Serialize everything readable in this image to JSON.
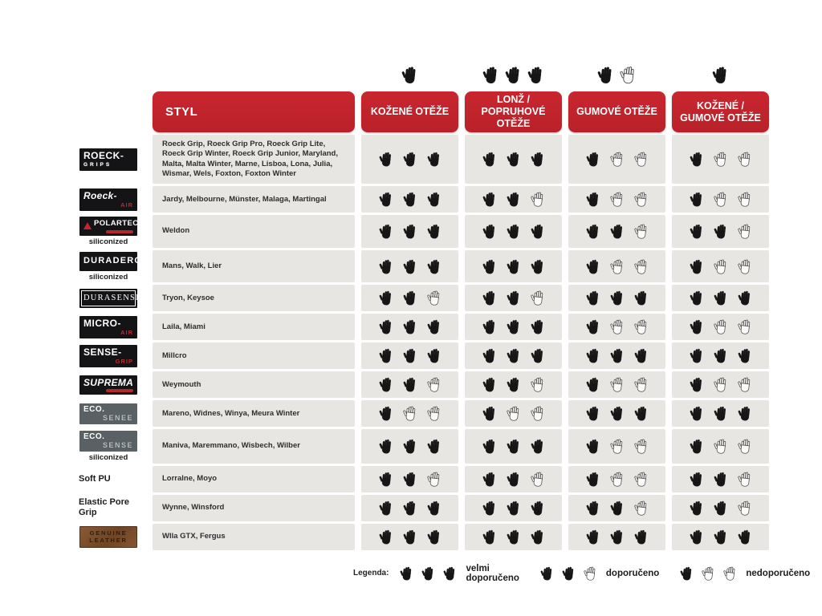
{
  "colors": {
    "accent_red": "#c4242e",
    "row_background": "#e8e6e3",
    "logo_black": "#141417",
    "logo_gray": "#596165",
    "leather_brown": "#7a4c28",
    "hand_fill": "#161616"
  },
  "table": {
    "style_header": "STYL",
    "rating_scale": {
      "max": 3
    },
    "columns": [
      {
        "label": "KOŽENÉ OTĚŽE",
        "header_hands": {
          "filled": 1,
          "total": 1
        }
      },
      {
        "label": "LONŽ / POPRUHOVÉ OTĚŽE",
        "header_hands": {
          "filled": 3,
          "total": 3
        }
      },
      {
        "label": "GUMOVÉ OTĚŽE",
        "header_hands": {
          "filled": 1,
          "total": 2
        }
      },
      {
        "label": "KOŽENÉ / GUMOVÉ OTĚŽE",
        "header_hands": {
          "filled": 1,
          "total": 1
        }
      }
    ],
    "rows": [
      {
        "brand": {
          "id": "roeck-grips",
          "box": "black",
          "lines": [
            {
              "t": "ROECK-",
              "c": "main"
            },
            {
              "t": "GRIPS",
              "c": "spaced"
            }
          ],
          "below": ""
        },
        "products": "Roeck Grip, Roeck Grip Pro, Roeck Grip Lite, Roeck Grip Winter, Roeck Grip Junior, Maryland, Malta, Malta Winter, Marne, Lisboa, Lona, Julia, Wismar, Wels, Foxton, Foxton Winter",
        "ratings": [
          3,
          3,
          1,
          1
        ]
      },
      {
        "brand": {
          "id": "roeck-air",
          "box": "black",
          "lines": [
            {
              "t": "Roeck-",
              "c": "main-it"
            },
            {
              "t": "AIR",
              "c": "red-right"
            }
          ],
          "below": ""
        },
        "products": "Jardy, Melbourne, Münster, Malaga, Martingal",
        "ratings": [
          3,
          2,
          1,
          1
        ]
      },
      {
        "brand": {
          "id": "polartec",
          "box": "black",
          "triangle": true,
          "redbar": true,
          "lines": [
            {
              "t": "POLARTEC",
              "c": "main-sm"
            }
          ],
          "below": "siliconized"
        },
        "products": "Weldon",
        "ratings": [
          3,
          3,
          2,
          2
        ]
      },
      {
        "brand": {
          "id": "duradero",
          "box": "black",
          "lines": [
            {
              "t": "DURADERO",
              "c": "main-tight"
            }
          ],
          "below": "siliconized"
        },
        "products": "Mans, Walk, Lier",
        "ratings": [
          3,
          3,
          1,
          1
        ]
      },
      {
        "brand": {
          "id": "durasense",
          "box": "black",
          "framed": true,
          "lines": [
            {
              "t": "DURASENSE",
              "c": "serif"
            }
          ],
          "below": ""
        },
        "products": "Tryon, Keysoe",
        "ratings": [
          2,
          2,
          3,
          3
        ]
      },
      {
        "brand": {
          "id": "micro-air",
          "box": "black",
          "lines": [
            {
              "t": "MICRO-",
              "c": "main"
            },
            {
              "t": "AIR",
              "c": "red-right"
            }
          ],
          "below": ""
        },
        "products": "Laila, Miami",
        "ratings": [
          3,
          3,
          1,
          1
        ]
      },
      {
        "brand": {
          "id": "sense-grip",
          "box": "black",
          "lines": [
            {
              "t": "SENSE-",
              "c": "main"
            },
            {
              "t": "GRIP",
              "c": "red-right"
            }
          ],
          "below": ""
        },
        "products": "Millcro",
        "ratings": [
          3,
          3,
          3,
          3
        ]
      },
      {
        "brand": {
          "id": "suprema",
          "box": "black",
          "redbar": true,
          "lines": [
            {
              "t": "SUPREMA",
              "c": "main-it"
            }
          ],
          "below": ""
        },
        "products": "Weymouth",
        "ratings": [
          2,
          2,
          1,
          1
        ]
      },
      {
        "brand": {
          "id": "eco-senee",
          "box": "gray",
          "lines": [
            {
              "t": "ECO.",
              "c": "eco"
            },
            {
              "t": "SENEE",
              "c": "eco-sub"
            }
          ],
          "below": ""
        },
        "products": "Mareno, Widnes, Winya, Meura Winter",
        "ratings": [
          1,
          1,
          3,
          3
        ]
      },
      {
        "brand": {
          "id": "eco-sense",
          "box": "gray",
          "lines": [
            {
              "t": "ECO.",
              "c": "eco"
            },
            {
              "t": "SENSE",
              "c": "eco-sub"
            }
          ],
          "below": "siliconized"
        },
        "products": "Maniva, Maremmano, Wisbech, Wilber",
        "ratings": [
          3,
          3,
          1,
          1
        ]
      },
      {
        "brand": {
          "id": "soft-pu",
          "box": "none",
          "lines": [
            {
              "t": "Soft PU",
              "c": "plain"
            }
          ],
          "below": ""
        },
        "products": "Lorralne, Moyo",
        "ratings": [
          2,
          2,
          1,
          2
        ]
      },
      {
        "brand": {
          "id": "elastic-pore-grip",
          "box": "none",
          "lines": [
            {
              "t": "Elastic Pore Grip",
              "c": "plain"
            }
          ],
          "below": ""
        },
        "products": "Wynne, Winsford",
        "ratings": [
          3,
          3,
          2,
          2
        ]
      },
      {
        "brand": {
          "id": "genuine-leather",
          "box": "leather",
          "lines": [
            {
              "t": "GENUINE",
              "c": "stamp"
            },
            {
              "t": "LEATHER",
              "c": "stamp"
            }
          ],
          "below": ""
        },
        "products": "Wlla GTX, Fergus",
        "ratings": [
          3,
          3,
          3,
          3
        ]
      }
    ]
  },
  "legend": {
    "label": "Legenda:",
    "items": [
      {
        "filled": 3,
        "total": 3,
        "label": "velmi doporučeno"
      },
      {
        "filled": 2,
        "total": 3,
        "label": "doporučeno"
      },
      {
        "filled": 1,
        "total": 3,
        "label": "nedoporučeno"
      }
    ]
  }
}
